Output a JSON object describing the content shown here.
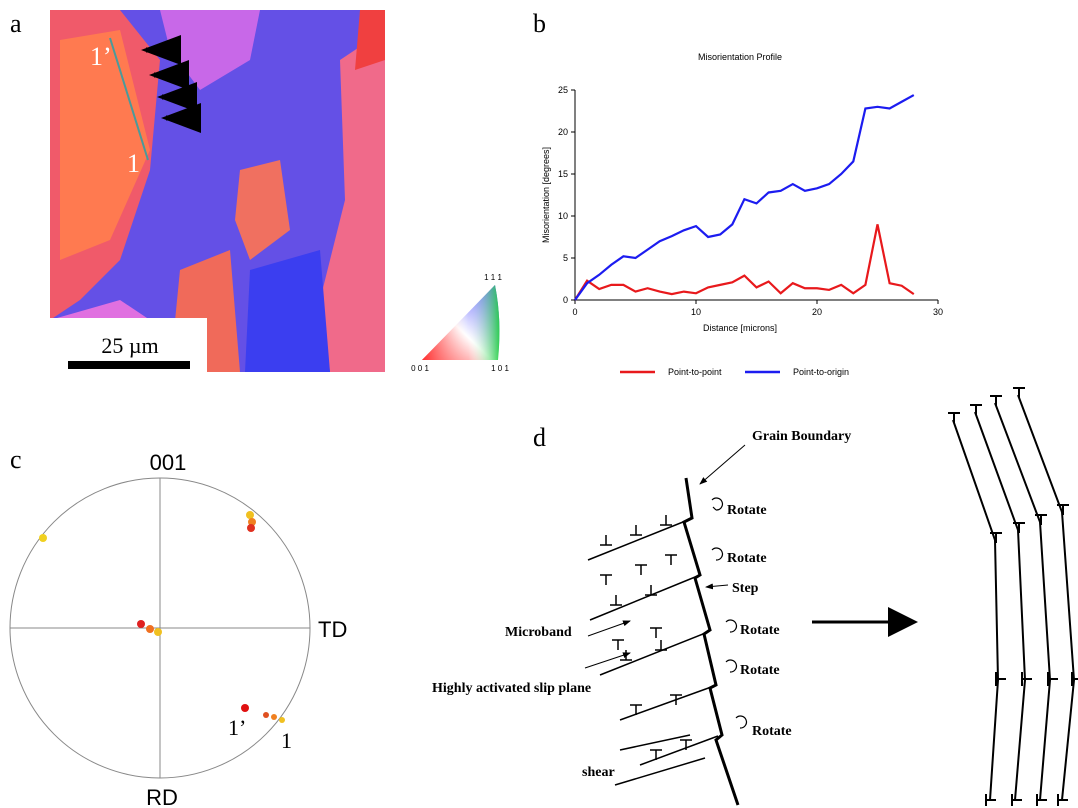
{
  "panel_a": {
    "letter": "a",
    "point_start": "1’",
    "point_end": "1",
    "scale_bar": "25 µm",
    "triangle_top": "1 1 1",
    "triangle_left": "0 0 1",
    "triangle_right": "1 0 1"
  },
  "panel_b": {
    "letter": "b"
  },
  "chart_data": {
    "type": "line",
    "title": "Misorientation Profile",
    "x_label": "Distance [microns]",
    "y_label": "Misorientation [degrees]",
    "x": [
      0,
      1,
      2,
      3,
      4,
      5,
      6,
      7,
      8,
      9,
      10,
      11,
      12,
      13,
      14,
      15,
      16,
      17,
      18,
      19,
      20,
      21,
      22,
      23,
      24,
      25,
      26,
      27,
      28
    ],
    "series": [
      {
        "name": "Point-to-point",
        "color": "#e8191c",
        "values": [
          0,
          2.3,
          1.3,
          1.8,
          1.8,
          1,
          1.4,
          1,
          0.7,
          1,
          0.8,
          1.5,
          1.8,
          2.1,
          2.9,
          1.5,
          2.2,
          0.8,
          2,
          1.4,
          1.4,
          1.2,
          1.8,
          0.8,
          1.8,
          9,
          2,
          1.7,
          0.7
        ]
      },
      {
        "name": "Point-to-origin",
        "color": "#1c1cf0",
        "values": [
          0,
          2,
          3,
          4.2,
          5.2,
          5,
          6,
          7,
          7.6,
          8.3,
          8.8,
          7.5,
          7.8,
          9,
          12,
          11.5,
          12.8,
          13,
          13.8,
          13,
          13.3,
          13.8,
          15,
          16.5,
          22.8,
          23,
          22.8,
          23.6,
          24.4
        ]
      }
    ],
    "xlim": [
      0,
      30
    ],
    "ylim": [
      0,
      25
    ],
    "xticks": [
      0,
      10,
      20,
      30
    ],
    "yticks": [
      0,
      5,
      10,
      15,
      20,
      25
    ],
    "legend": "bottom"
  },
  "panel_c": {
    "letter": "c",
    "top": "001",
    "right": "TD",
    "bottom": "RD",
    "point_start": "1’",
    "point_end": "1"
  },
  "panel_d": {
    "letter": "d",
    "grain_boundary": "Grain Boundary",
    "rotate": [
      "Rotate",
      "Rotate",
      "Rotate",
      "Rotate",
      "Rotate"
    ],
    "step": "Step",
    "microband": "Microband",
    "slip_plane": "Highly activated slip plane",
    "shear": "shear"
  }
}
